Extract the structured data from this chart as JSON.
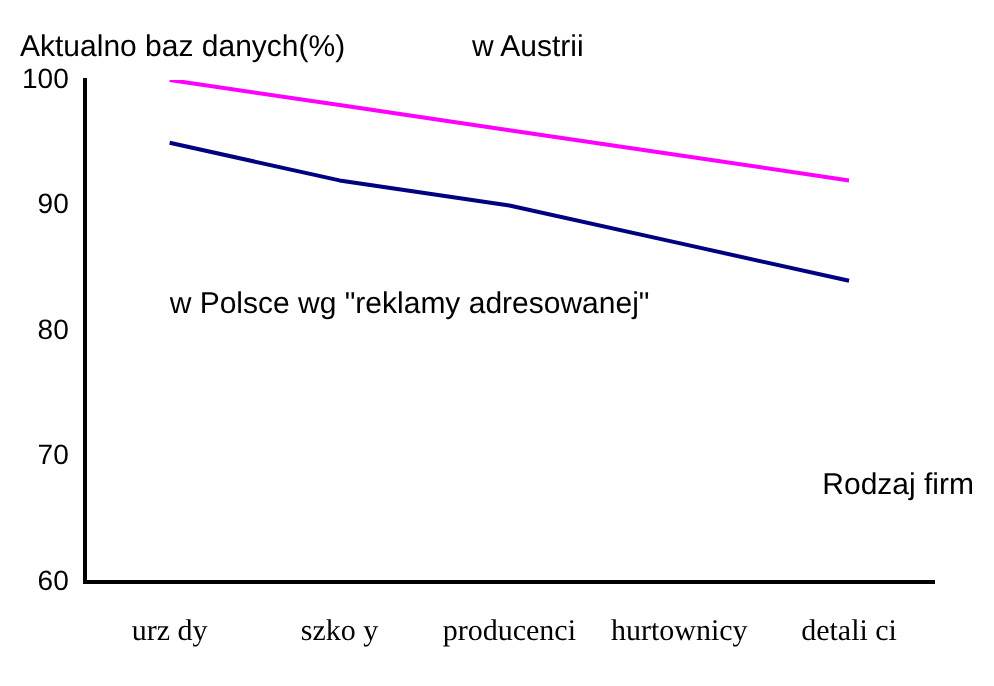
{
  "chart_data": {
    "type": "line",
    "ylabel": "Aktualno baz danych(%)",
    "xlabel": "Rodzaj firm",
    "categories": [
      "urz dy",
      "szko y",
      "producenci",
      "hurtownicy",
      "detali ci"
    ],
    "series": [
      {
        "name": "w Austrii",
        "color": "#ff00ff",
        "values": [
          100,
          98,
          96,
          94,
          92
        ]
      },
      {
        "name": "w Polsce wg \"reklamy adresowanej\"",
        "color": "#000080",
        "values": [
          95,
          92,
          90,
          87,
          84
        ]
      }
    ],
    "ylim": [
      60,
      100
    ],
    "yticks": [
      60,
      70,
      80,
      90,
      100
    ],
    "grid": false,
    "legend": false,
    "marker": "none",
    "line_style": "solid"
  }
}
